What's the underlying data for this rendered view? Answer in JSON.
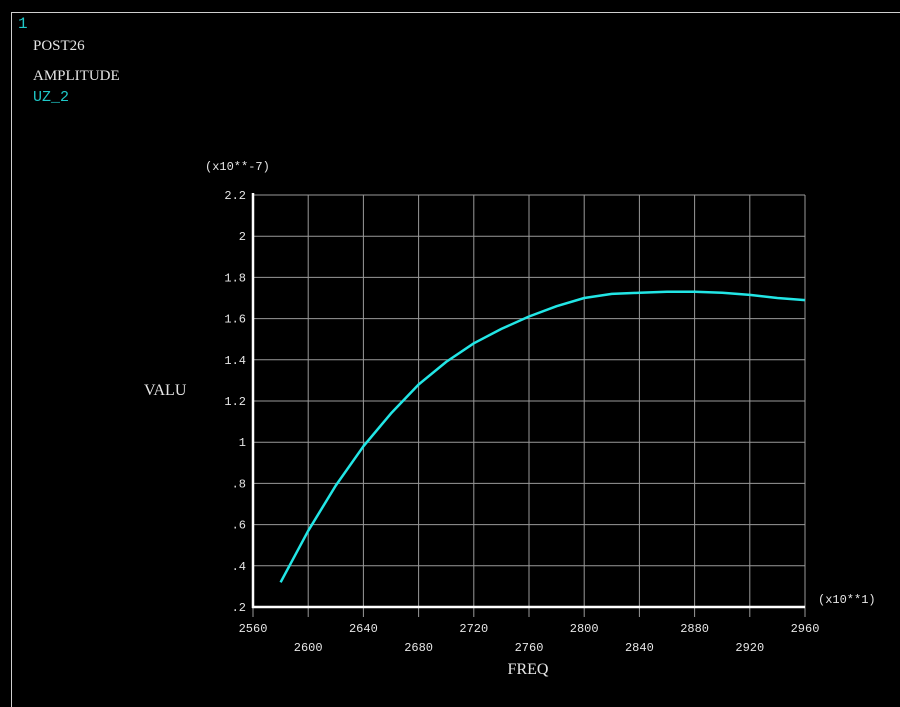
{
  "window_number": "1",
  "header": {
    "module": "POST26",
    "plot_type": "AMPLITUDE"
  },
  "colors": {
    "background": "#000000",
    "text": "#e6e6e6",
    "accent": "#1fc8c8",
    "curve": "#22e6e6",
    "grid": "#9a9a9a",
    "axis": "#ffffff"
  },
  "chart_data": {
    "type": "line",
    "title": "AMPLITUDE",
    "xlabel": "FREQ",
    "ylabel": "VALU",
    "x_multiplier": "(x10**1)",
    "y_multiplier": "(x10**-7)",
    "xlim": [
      2560,
      2960
    ],
    "ylim": [
      0.2,
      2.2
    ],
    "grid": true,
    "x_ticks": [
      "2560",
      "2600",
      "2640",
      "2680",
      "2720",
      "2760",
      "2800",
      "2840",
      "2880",
      "2920",
      "2960"
    ],
    "y_ticks": [
      ".2",
      ".4",
      ".6",
      ".8",
      "1",
      "1.2",
      "1.4",
      "1.6",
      "1.8",
      "2",
      "2.2"
    ],
    "series": [
      {
        "name": "UZ_2",
        "x": [
          2580,
          2600,
          2620,
          2640,
          2660,
          2680,
          2700,
          2720,
          2740,
          2760,
          2780,
          2800,
          2820,
          2840,
          2860,
          2880,
          2900,
          2920,
          2940,
          2960
        ],
        "y": [
          0.32,
          0.57,
          0.79,
          0.98,
          1.14,
          1.28,
          1.39,
          1.48,
          1.55,
          1.61,
          1.66,
          1.7,
          1.72,
          1.725,
          1.73,
          1.73,
          1.725,
          1.715,
          1.7,
          1.69
        ]
      }
    ]
  }
}
